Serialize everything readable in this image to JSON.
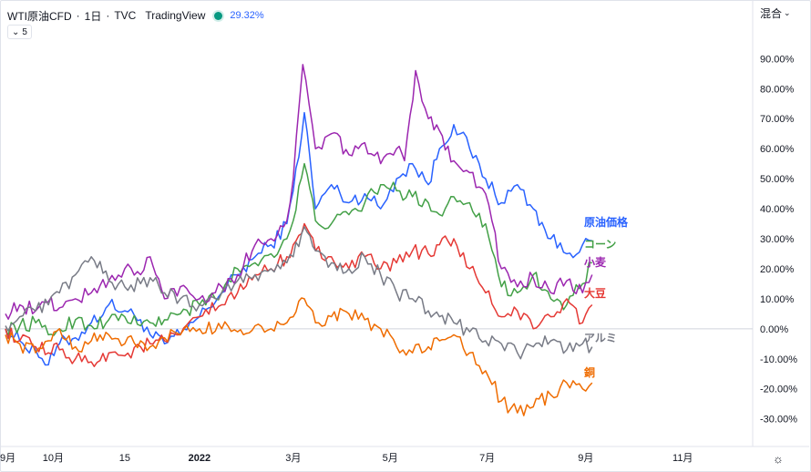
{
  "header": {
    "symbol": "WTI原油CFD",
    "interval": "1日",
    "source": "TVC",
    "platform": "TradingView",
    "change": "29.32%",
    "collapse_count": "5"
  },
  "scale_mode": "混合",
  "icons": {
    "collapse": "chevron-down-icon",
    "scale": "chevron-down-icon",
    "settings": "gear-icon",
    "status": "status-dot-icon"
  },
  "colors": {
    "grid_zero": "#d1d4dc",
    "axis_line": "#e0e3eb"
  },
  "chart_data": {
    "type": "line",
    "yaxis": {
      "min": -0.38,
      "max": 0.98,
      "ticks": [
        0.9,
        0.8,
        0.7,
        0.6,
        0.5,
        0.4,
        0.3,
        0.2,
        0.1,
        0.0,
        -0.1,
        -0.2,
        -0.3
      ],
      "tick_labels": [
        "90.00%",
        "80.00%",
        "70.00%",
        "60.00%",
        "50.00%",
        "40.00%",
        "30.00%",
        "20.00%",
        "10.00%",
        "0.00%",
        "-10.00%",
        "-20.00%",
        "-30.00%"
      ]
    },
    "xaxis": {
      "tick_labels": [
        "9月",
        "10月",
        "15",
        "2022",
        "3月",
        "5月",
        "7月",
        "9月",
        "11月"
      ],
      "tick_dates": [
        "2021-09-01",
        "2021-10-01",
        "2021-11-15",
        "2022-01-01",
        "2022-03-01",
        "2022-05-01",
        "2022-07-01",
        "2022-09-01",
        "2022-11-01"
      ],
      "bold": [
        false,
        false,
        false,
        true,
        false,
        false,
        false,
        false,
        false
      ],
      "range": [
        "2021-09-01",
        "2022-12-15"
      ]
    },
    "series": [
      {
        "name": "原油価格",
        "color": "#2962ff",
        "last": 0.2932,
        "points": [
          [
            "2021-09-01",
            0.0
          ],
          [
            "2021-09-10",
            -0.04
          ],
          [
            "2021-09-20",
            -0.07
          ],
          [
            "2021-09-28",
            -0.12
          ],
          [
            "2021-10-05",
            -0.05
          ],
          [
            "2021-10-15",
            -0.03
          ],
          [
            "2021-10-25",
            0.02
          ],
          [
            "2021-11-05",
            0.08
          ],
          [
            "2021-11-15",
            0.06
          ],
          [
            "2021-11-25",
            0.03
          ],
          [
            "2021-12-01",
            -0.02
          ],
          [
            "2021-12-10",
            -0.05
          ],
          [
            "2021-12-20",
            -0.02
          ],
          [
            "2022-01-01",
            0.04
          ],
          [
            "2022-01-15",
            0.12
          ],
          [
            "2022-01-25",
            0.18
          ],
          [
            "2022-02-05",
            0.24
          ],
          [
            "2022-02-15",
            0.28
          ],
          [
            "2022-02-25",
            0.35
          ],
          [
            "2022-03-01",
            0.46
          ],
          [
            "2022-03-08",
            0.72
          ],
          [
            "2022-03-15",
            0.4
          ],
          [
            "2022-03-25",
            0.48
          ],
          [
            "2022-04-05",
            0.42
          ],
          [
            "2022-04-15",
            0.45
          ],
          [
            "2022-04-25",
            0.4
          ],
          [
            "2022-05-05",
            0.5
          ],
          [
            "2022-05-15",
            0.55
          ],
          [
            "2022-05-25",
            0.48
          ],
          [
            "2022-06-01",
            0.6
          ],
          [
            "2022-06-10",
            0.68
          ],
          [
            "2022-06-20",
            0.6
          ],
          [
            "2022-06-30",
            0.5
          ],
          [
            "2022-07-10",
            0.42
          ],
          [
            "2022-07-20",
            0.48
          ],
          [
            "2022-07-30",
            0.4
          ],
          [
            "2022-08-10",
            0.3
          ],
          [
            "2022-08-20",
            0.25
          ],
          [
            "2022-08-30",
            0.28
          ],
          [
            "2022-09-05",
            0.2932
          ]
        ]
      },
      {
        "name": "コーン",
        "color": "#43a047",
        "last": 0.22,
        "points": [
          [
            "2021-09-01",
            0.0
          ],
          [
            "2021-09-10",
            0.01
          ],
          [
            "2021-09-20",
            0.02
          ],
          [
            "2021-09-28",
            -0.02
          ],
          [
            "2021-10-05",
            0.0
          ],
          [
            "2021-10-15",
            0.03
          ],
          [
            "2021-10-25",
            0.01
          ],
          [
            "2021-11-05",
            0.03
          ],
          [
            "2021-11-15",
            0.04
          ],
          [
            "2021-11-25",
            0.01
          ],
          [
            "2021-12-01",
            0.02
          ],
          [
            "2021-12-10",
            0.03
          ],
          [
            "2021-12-20",
            0.05
          ],
          [
            "2022-01-01",
            0.08
          ],
          [
            "2022-01-15",
            0.12
          ],
          [
            "2022-01-25",
            0.2
          ],
          [
            "2022-02-05",
            0.22
          ],
          [
            "2022-02-15",
            0.25
          ],
          [
            "2022-02-25",
            0.3
          ],
          [
            "2022-03-01",
            0.36
          ],
          [
            "2022-03-08",
            0.55
          ],
          [
            "2022-03-15",
            0.36
          ],
          [
            "2022-03-25",
            0.35
          ],
          [
            "2022-04-05",
            0.38
          ],
          [
            "2022-04-15",
            0.42
          ],
          [
            "2022-04-25",
            0.48
          ],
          [
            "2022-05-05",
            0.46
          ],
          [
            "2022-05-15",
            0.44
          ],
          [
            "2022-05-25",
            0.42
          ],
          [
            "2022-06-01",
            0.38
          ],
          [
            "2022-06-10",
            0.44
          ],
          [
            "2022-06-20",
            0.42
          ],
          [
            "2022-06-30",
            0.35
          ],
          [
            "2022-07-10",
            0.14
          ],
          [
            "2022-07-20",
            0.12
          ],
          [
            "2022-07-30",
            0.18
          ],
          [
            "2022-08-10",
            0.1
          ],
          [
            "2022-08-20",
            0.08
          ],
          [
            "2022-08-30",
            0.15
          ],
          [
            "2022-09-05",
            0.22
          ]
        ]
      },
      {
        "name": "小麦",
        "color": "#9c27b0",
        "last": 0.18,
        "points": [
          [
            "2021-09-01",
            0.05
          ],
          [
            "2021-09-10",
            0.08
          ],
          [
            "2021-09-20",
            0.06
          ],
          [
            "2021-09-28",
            0.09
          ],
          [
            "2021-10-05",
            0.07
          ],
          [
            "2021-10-15",
            0.1
          ],
          [
            "2021-10-25",
            0.12
          ],
          [
            "2021-11-05",
            0.16
          ],
          [
            "2021-11-15",
            0.2
          ],
          [
            "2021-11-25",
            0.18
          ],
          [
            "2021-12-01",
            0.24
          ],
          [
            "2021-12-10",
            0.1
          ],
          [
            "2021-12-20",
            0.14
          ],
          [
            "2022-01-01",
            0.1
          ],
          [
            "2022-01-15",
            0.14
          ],
          [
            "2022-01-25",
            0.18
          ],
          [
            "2022-02-05",
            0.28
          ],
          [
            "2022-02-15",
            0.3
          ],
          [
            "2022-02-25",
            0.36
          ],
          [
            "2022-03-01",
            0.5
          ],
          [
            "2022-03-07",
            0.88
          ],
          [
            "2022-03-15",
            0.6
          ],
          [
            "2022-03-25",
            0.65
          ],
          [
            "2022-04-05",
            0.58
          ],
          [
            "2022-04-15",
            0.62
          ],
          [
            "2022-04-25",
            0.55
          ],
          [
            "2022-05-05",
            0.6
          ],
          [
            "2022-05-10",
            0.56
          ],
          [
            "2022-05-17",
            0.86
          ],
          [
            "2022-05-25",
            0.7
          ],
          [
            "2022-06-01",
            0.66
          ],
          [
            "2022-06-10",
            0.56
          ],
          [
            "2022-06-20",
            0.52
          ],
          [
            "2022-06-30",
            0.45
          ],
          [
            "2022-07-10",
            0.2
          ],
          [
            "2022-07-20",
            0.14
          ],
          [
            "2022-07-30",
            0.17
          ],
          [
            "2022-08-10",
            0.12
          ],
          [
            "2022-08-20",
            0.16
          ],
          [
            "2022-08-30",
            0.12
          ],
          [
            "2022-09-05",
            0.18
          ]
        ]
      },
      {
        "name": "大豆",
        "color": "#e53935",
        "last": 0.08,
        "points": [
          [
            "2021-09-01",
            0.0
          ],
          [
            "2021-09-10",
            -0.04
          ],
          [
            "2021-09-20",
            -0.06
          ],
          [
            "2021-09-28",
            -0.08
          ],
          [
            "2021-10-05",
            -0.07
          ],
          [
            "2021-10-15",
            -0.1
          ],
          [
            "2021-10-25",
            -0.11
          ],
          [
            "2021-11-05",
            -0.08
          ],
          [
            "2021-11-15",
            -0.09
          ],
          [
            "2021-11-25",
            -0.06
          ],
          [
            "2021-12-01",
            -0.05
          ],
          [
            "2021-12-10",
            -0.04
          ],
          [
            "2021-12-20",
            -0.02
          ],
          [
            "2022-01-01",
            0.04
          ],
          [
            "2022-01-15",
            0.08
          ],
          [
            "2022-01-25",
            0.12
          ],
          [
            "2022-02-05",
            0.18
          ],
          [
            "2022-02-15",
            0.2
          ],
          [
            "2022-02-25",
            0.24
          ],
          [
            "2022-03-01",
            0.28
          ],
          [
            "2022-03-08",
            0.35
          ],
          [
            "2022-03-15",
            0.26
          ],
          [
            "2022-03-25",
            0.24
          ],
          [
            "2022-04-05",
            0.2
          ],
          [
            "2022-04-15",
            0.24
          ],
          [
            "2022-04-25",
            0.2
          ],
          [
            "2022-05-05",
            0.22
          ],
          [
            "2022-05-15",
            0.26
          ],
          [
            "2022-05-25",
            0.25
          ],
          [
            "2022-06-01",
            0.28
          ],
          [
            "2022-06-10",
            0.3
          ],
          [
            "2022-06-20",
            0.2
          ],
          [
            "2022-06-30",
            0.12
          ],
          [
            "2022-07-10",
            0.04
          ],
          [
            "2022-07-20",
            0.06
          ],
          [
            "2022-07-30",
            0.0
          ],
          [
            "2022-08-10",
            0.04
          ],
          [
            "2022-08-20",
            0.1
          ],
          [
            "2022-08-30",
            0.02
          ],
          [
            "2022-09-05",
            0.08
          ]
        ]
      },
      {
        "name": "アルミ",
        "color": "#787b86",
        "last": -0.06,
        "points": [
          [
            "2021-09-01",
            0.01
          ],
          [
            "2021-09-10",
            0.04
          ],
          [
            "2021-09-20",
            0.06
          ],
          [
            "2021-09-28",
            0.08
          ],
          [
            "2021-10-05",
            0.12
          ],
          [
            "2021-10-15",
            0.18
          ],
          [
            "2021-10-25",
            0.24
          ],
          [
            "2021-11-05",
            0.16
          ],
          [
            "2021-11-15",
            0.14
          ],
          [
            "2021-11-25",
            0.15
          ],
          [
            "2021-12-01",
            0.17
          ],
          [
            "2021-12-10",
            0.12
          ],
          [
            "2021-12-20",
            0.1
          ],
          [
            "2022-01-01",
            0.08
          ],
          [
            "2022-01-15",
            0.12
          ],
          [
            "2022-01-25",
            0.16
          ],
          [
            "2022-02-05",
            0.18
          ],
          [
            "2022-02-15",
            0.2
          ],
          [
            "2022-02-25",
            0.22
          ],
          [
            "2022-03-01",
            0.24
          ],
          [
            "2022-03-08",
            0.34
          ],
          [
            "2022-03-15",
            0.26
          ],
          [
            "2022-03-25",
            0.22
          ],
          [
            "2022-04-05",
            0.2
          ],
          [
            "2022-04-15",
            0.24
          ],
          [
            "2022-04-25",
            0.18
          ],
          [
            "2022-05-05",
            0.12
          ],
          [
            "2022-05-15",
            0.1
          ],
          [
            "2022-05-25",
            0.06
          ],
          [
            "2022-06-01",
            0.04
          ],
          [
            "2022-06-10",
            0.02
          ],
          [
            "2022-06-20",
            -0.01
          ],
          [
            "2022-06-30",
            -0.04
          ],
          [
            "2022-07-10",
            -0.05
          ],
          [
            "2022-07-20",
            -0.08
          ],
          [
            "2022-07-30",
            -0.06
          ],
          [
            "2022-08-10",
            -0.04
          ],
          [
            "2022-08-20",
            -0.07
          ],
          [
            "2022-08-30",
            -0.05
          ],
          [
            "2022-09-05",
            -0.06
          ]
        ]
      },
      {
        "name": "銅",
        "color": "#ef6c00",
        "last": -0.18,
        "points": [
          [
            "2021-09-01",
            -0.02
          ],
          [
            "2021-09-10",
            -0.05
          ],
          [
            "2021-09-20",
            -0.08
          ],
          [
            "2021-09-28",
            -0.04
          ],
          [
            "2021-10-05",
            0.0
          ],
          [
            "2021-10-15",
            -0.06
          ],
          [
            "2021-10-25",
            -0.04
          ],
          [
            "2021-11-05",
            -0.02
          ],
          [
            "2021-11-15",
            -0.05
          ],
          [
            "2021-11-25",
            -0.04
          ],
          [
            "2021-12-01",
            -0.06
          ],
          [
            "2021-12-10",
            -0.03
          ],
          [
            "2021-12-20",
            -0.02
          ],
          [
            "2022-01-01",
            0.0
          ],
          [
            "2022-01-15",
            0.0
          ],
          [
            "2022-01-25",
            -0.01
          ],
          [
            "2022-02-05",
            0.01
          ],
          [
            "2022-02-15",
            0.0
          ],
          [
            "2022-02-25",
            0.02
          ],
          [
            "2022-03-01",
            0.04
          ],
          [
            "2022-03-08",
            0.1
          ],
          [
            "2022-03-15",
            0.02
          ],
          [
            "2022-03-25",
            0.04
          ],
          [
            "2022-04-05",
            0.05
          ],
          [
            "2022-04-15",
            0.03
          ],
          [
            "2022-04-25",
            0.0
          ],
          [
            "2022-05-05",
            -0.06
          ],
          [
            "2022-05-15",
            -0.08
          ],
          [
            "2022-05-25",
            -0.06
          ],
          [
            "2022-06-01",
            -0.04
          ],
          [
            "2022-06-10",
            -0.02
          ],
          [
            "2022-06-20",
            -0.08
          ],
          [
            "2022-06-30",
            -0.14
          ],
          [
            "2022-07-10",
            -0.24
          ],
          [
            "2022-07-20",
            -0.28
          ],
          [
            "2022-07-30",
            -0.26
          ],
          [
            "2022-08-10",
            -0.22
          ],
          [
            "2022-08-20",
            -0.18
          ],
          [
            "2022-08-30",
            -0.2
          ],
          [
            "2022-09-05",
            -0.18
          ]
        ]
      }
    ],
    "series_labels": [
      "原油価格",
      "コーン",
      "小麦",
      "大豆",
      "アルミ",
      "銅"
    ]
  }
}
